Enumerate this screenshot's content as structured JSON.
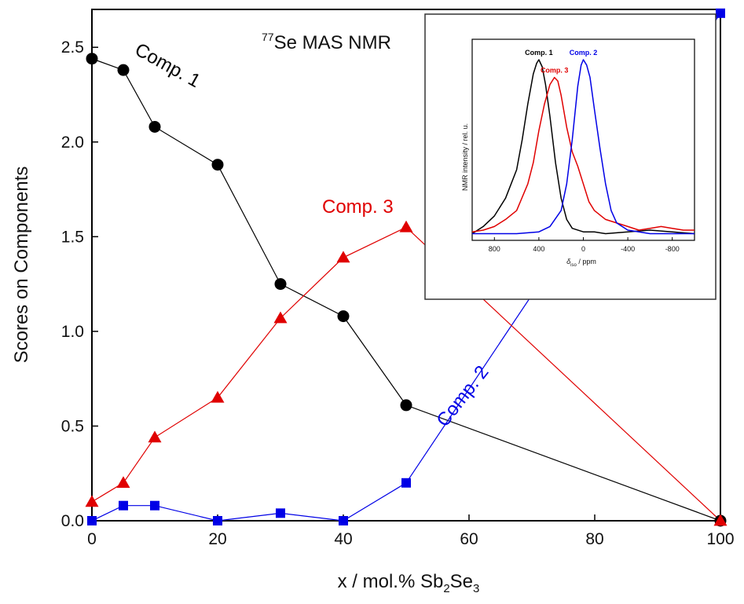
{
  "chart_data": [
    {
      "type": "line",
      "title": "77Se MAS NMR",
      "title_parts": {
        "superscript": "77",
        "rest": "Se MAS NMR"
      },
      "xlabel": "x / mol.% Sb2Se3",
      "xlabel_parts": {
        "prefix": "x / mol.% Sb",
        "sub1": "2",
        "mid": "Se",
        "sub2": "3"
      },
      "ylabel": "Scores on Components",
      "xlim": [
        0,
        100
      ],
      "ylim": [
        0,
        2.7
      ],
      "xticks": [
        0,
        20,
        40,
        60,
        80,
        100
      ],
      "xtick_labels": [
        "0",
        "20",
        "40",
        "60",
        "80",
        "100"
      ],
      "yticks": [
        0.0,
        0.5,
        1.0,
        1.5,
        2.0,
        2.5
      ],
      "ytick_labels": [
        "0.0",
        "0.5",
        "1.0",
        "1.5",
        "2.0",
        "2.5"
      ],
      "grid": false,
      "series": [
        {
          "name": "Comp. 1",
          "color": "#000000",
          "marker": "circle",
          "x": [
            0,
            5,
            10,
            20,
            30,
            40,
            50,
            100
          ],
          "y": [
            2.44,
            2.38,
            2.08,
            1.88,
            1.25,
            1.08,
            0.61,
            0.0
          ]
        },
        {
          "name": "Comp. 2",
          "color": "#0000e6",
          "marker": "square",
          "x": [
            0,
            5,
            10,
            20,
            30,
            40,
            50,
            100
          ],
          "y": [
            0.0,
            0.08,
            0.08,
            0.0,
            0.04,
            0.0,
            0.2,
            2.68
          ]
        },
        {
          "name": "Comp. 3",
          "color": "#e00000",
          "marker": "triangle",
          "x": [
            0,
            5,
            10,
            20,
            30,
            40,
            50,
            100
          ],
          "y": [
            0.1,
            0.2,
            0.44,
            0.65,
            1.07,
            1.39,
            1.55,
            0.0
          ]
        }
      ]
    },
    {
      "type": "line",
      "title": "",
      "xlabel": "δiso / ppm",
      "xlabel_parts": {
        "symbol": "δ",
        "sub": "iso",
        "rest": " / ppm"
      },
      "ylabel": "NMR intensity / rel. u.",
      "xlim": [
        1000,
        -1000
      ],
      "xticks": [
        800,
        400,
        0,
        -400,
        -800
      ],
      "xtick_labels": [
        "800",
        "400",
        "0",
        "-400",
        "-800"
      ],
      "series": [
        {
          "name": "Comp. 1",
          "color": "#000000",
          "x": [
            1000,
            900,
            800,
            700,
            600,
            550,
            500,
            450,
            420,
            400,
            370,
            340,
            300,
            250,
            200,
            150,
            100,
            0,
            -100,
            -200,
            -400,
            -600,
            -800,
            -1000
          ],
          "y": [
            0.02,
            0.06,
            0.12,
            0.22,
            0.38,
            0.55,
            0.75,
            0.92,
            0.98,
            1.0,
            0.96,
            0.86,
            0.68,
            0.42,
            0.22,
            0.1,
            0.05,
            0.03,
            0.03,
            0.02,
            0.03,
            0.04,
            0.03,
            0.02
          ]
        },
        {
          "name": "Comp. 3",
          "color": "#e00000",
          "x": [
            1000,
            900,
            800,
            700,
            600,
            500,
            450,
            400,
            350,
            300,
            260,
            230,
            200,
            150,
            100,
            50,
            0,
            -50,
            -100,
            -200,
            -300,
            -400,
            -500,
            -600,
            -700,
            -800,
            -900,
            -1000
          ],
          "y": [
            0.03,
            0.04,
            0.06,
            0.1,
            0.15,
            0.3,
            0.42,
            0.6,
            0.75,
            0.86,
            0.9,
            0.88,
            0.8,
            0.62,
            0.48,
            0.4,
            0.3,
            0.2,
            0.15,
            0.1,
            0.08,
            0.06,
            0.04,
            0.05,
            0.06,
            0.05,
            0.04,
            0.04
          ]
        },
        {
          "name": "Comp. 2",
          "color": "#0000e6",
          "x": [
            1000,
            800,
            600,
            400,
            300,
            200,
            150,
            100,
            50,
            20,
            0,
            -30,
            -60,
            -100,
            -150,
            -200,
            -250,
            -300,
            -400,
            -500,
            -600,
            -800,
            -1000
          ],
          "y": [
            0.02,
            0.02,
            0.02,
            0.03,
            0.06,
            0.15,
            0.3,
            0.55,
            0.85,
            0.97,
            1.0,
            0.97,
            0.9,
            0.72,
            0.5,
            0.3,
            0.15,
            0.08,
            0.04,
            0.03,
            0.02,
            0.02,
            0.02
          ]
        }
      ]
    }
  ]
}
